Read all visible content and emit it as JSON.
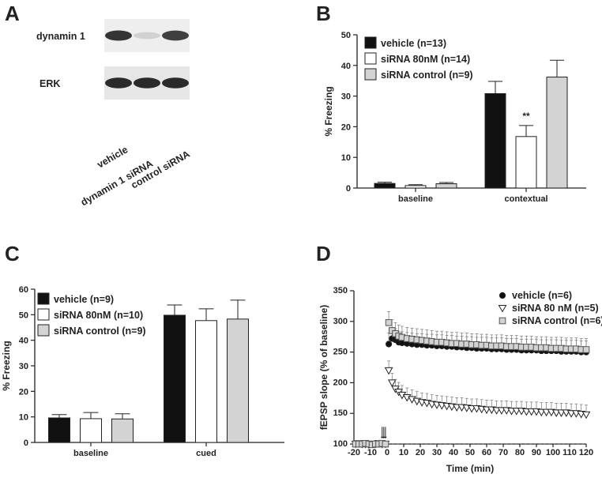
{
  "panels": {
    "A": {
      "letter": "A",
      "blot_labels": [
        "dynamin 1",
        "ERK"
      ],
      "lane_labels": [
        "vehicle",
        "dynamin 1 siRNA",
        "control siRNA"
      ],
      "band_intensity": {
        "dynamin 1": [
          0.85,
          0.12,
          0.8
        ],
        "ERK": [
          0.9,
          0.9,
          0.9
        ]
      }
    },
    "B": {
      "letter": "B"
    },
    "C": {
      "letter": "C"
    },
    "D": {
      "letter": "D"
    }
  },
  "colors": {
    "vehicle": "#111111",
    "siRNA": "#ffffff",
    "control": "#d3d3d3",
    "axis": "#222222"
  },
  "chart_data": [
    {
      "panel": "B",
      "type": "bar",
      "ylabel": "% Freezing",
      "ylim": [
        0,
        50
      ],
      "yticks": [
        "0",
        "10",
        "20",
        "30",
        "40",
        "50"
      ],
      "categories": [
        "baseline",
        "contextual"
      ],
      "legend_position": "top-left",
      "significance": [
        {
          "category": "contextual",
          "series": 1,
          "label": "**"
        }
      ],
      "series": [
        {
          "name": "vehicle (n=13)",
          "values": [
            1.5,
            30.8
          ],
          "errors": [
            0.4,
            4.0
          ]
        },
        {
          "name": "siRNA 80nM (n=14)",
          "values": [
            0.8,
            16.8
          ],
          "errors": [
            0.3,
            3.6
          ]
        },
        {
          "name": "siRNA control (n=9)",
          "values": [
            1.4,
            36.2
          ],
          "errors": [
            0.4,
            5.5
          ]
        }
      ]
    },
    {
      "panel": "C",
      "type": "bar",
      "ylabel": "% Freezing",
      "ylim": [
        0,
        60
      ],
      "yticks": [
        "0",
        "10",
        "20",
        "30",
        "40",
        "50",
        "60"
      ],
      "categories": [
        "baseline",
        "cued"
      ],
      "legend_position": "top-left",
      "series": [
        {
          "name": "vehicle (n=9)",
          "values": [
            9.6,
            49.8
          ],
          "errors": [
            1.3,
            4.0
          ]
        },
        {
          "name": "siRNA 80nM (n=10)",
          "values": [
            9.3,
            47.7
          ],
          "errors": [
            2.4,
            4.6
          ]
        },
        {
          "name": "siRNA control (n=9)",
          "values": [
            9.2,
            48.3
          ],
          "errors": [
            2.0,
            7.4
          ]
        }
      ]
    },
    {
      "panel": "D",
      "type": "scatter",
      "xlabel": "Time (min)",
      "ylabel": "fEPSP slope (% of baseline)",
      "xlim": [
        -20,
        120
      ],
      "ylim": [
        100,
        350
      ],
      "xticks": [
        "-20",
        "-10",
        "0",
        "10",
        "20",
        "30",
        "40",
        "50",
        "60",
        "70",
        "80",
        "90",
        "100",
        "110",
        "120"
      ],
      "yticks": [
        "100",
        "150",
        "200",
        "250",
        "300",
        "350"
      ],
      "baseline": 100,
      "stimulus_times": [
        -3,
        -2,
        -1
      ],
      "legend_position": "top-right",
      "series": [
        {
          "name": "vehicle (n=6)",
          "marker": "circle",
          "color": "#111111",
          "x": [
            -19,
            -17,
            -15,
            -13,
            -11,
            -9,
            -7,
            -5,
            -3,
            -1,
            1,
            3,
            5,
            7,
            9,
            12,
            15,
            18,
            21,
            24,
            27,
            30,
            33,
            36,
            39,
            42,
            45,
            48,
            51,
            54,
            57,
            60,
            63,
            66,
            69,
            72,
            75,
            78,
            81,
            84,
            87,
            90,
            93,
            96,
            99,
            102,
            105,
            108,
            111,
            114,
            117,
            120
          ],
          "y": [
            100,
            100,
            101,
            100,
            99,
            100,
            101,
            100,
            100,
            100,
            263,
            272,
            270,
            266,
            265,
            264,
            263,
            262,
            262,
            261,
            261,
            260,
            260,
            259,
            259,
            258,
            258,
            257,
            257,
            256,
            256,
            256,
            255,
            255,
            255,
            254,
            254,
            254,
            253,
            253,
            253,
            253,
            252,
            252,
            252,
            252,
            251,
            251,
            251,
            251,
            250,
            250
          ]
        },
        {
          "name": "siRNA 80 nM (n=5)",
          "marker": "triangle-down",
          "color": "#ffffff",
          "x": [
            -19,
            -17,
            -15,
            -13,
            -11,
            -9,
            -7,
            -5,
            -3,
            -1,
            1,
            3,
            5,
            7,
            9,
            12,
            15,
            18,
            21,
            24,
            27,
            30,
            33,
            36,
            39,
            42,
            45,
            48,
            51,
            54,
            57,
            60,
            63,
            66,
            69,
            72,
            75,
            78,
            81,
            84,
            87,
            90,
            93,
            96,
            99,
            102,
            105,
            108,
            111,
            114,
            117,
            120
          ],
          "y": [
            100,
            101,
            100,
            100,
            99,
            100,
            100,
            101,
            100,
            100,
            220,
            200,
            190,
            185,
            180,
            176,
            173,
            170,
            168,
            167,
            165,
            164,
            163,
            162,
            161,
            160,
            160,
            159,
            158,
            158,
            157,
            156,
            156,
            155,
            155,
            155,
            154,
            154,
            154,
            153,
            153,
            153,
            152,
            152,
            152,
            151,
            151,
            151,
            150,
            150,
            149,
            148
          ]
        },
        {
          "name": "siRNA control (n=6)",
          "marker": "square",
          "color": "#d3d3d3",
          "x": [
            -19,
            -17,
            -15,
            -13,
            -11,
            -9,
            -7,
            -5,
            -3,
            -1,
            1,
            3,
            5,
            7,
            9,
            12,
            15,
            18,
            21,
            24,
            27,
            30,
            33,
            36,
            39,
            42,
            45,
            48,
            51,
            54,
            57,
            60,
            63,
            66,
            69,
            72,
            75,
            78,
            81,
            84,
            87,
            90,
            93,
            96,
            99,
            102,
            105,
            108,
            111,
            114,
            117,
            120
          ],
          "y": [
            100,
            100,
            100,
            101,
            100,
            99,
            100,
            100,
            101,
            100,
            298,
            285,
            280,
            276,
            274,
            272,
            271,
            270,
            269,
            268,
            267,
            266,
            266,
            265,
            264,
            264,
            263,
            263,
            262,
            262,
            261,
            261,
            260,
            260,
            260,
            259,
            259,
            259,
            258,
            258,
            258,
            257,
            257,
            257,
            256,
            256,
            256,
            255,
            255,
            255,
            254,
            254
          ]
        }
      ]
    }
  ]
}
